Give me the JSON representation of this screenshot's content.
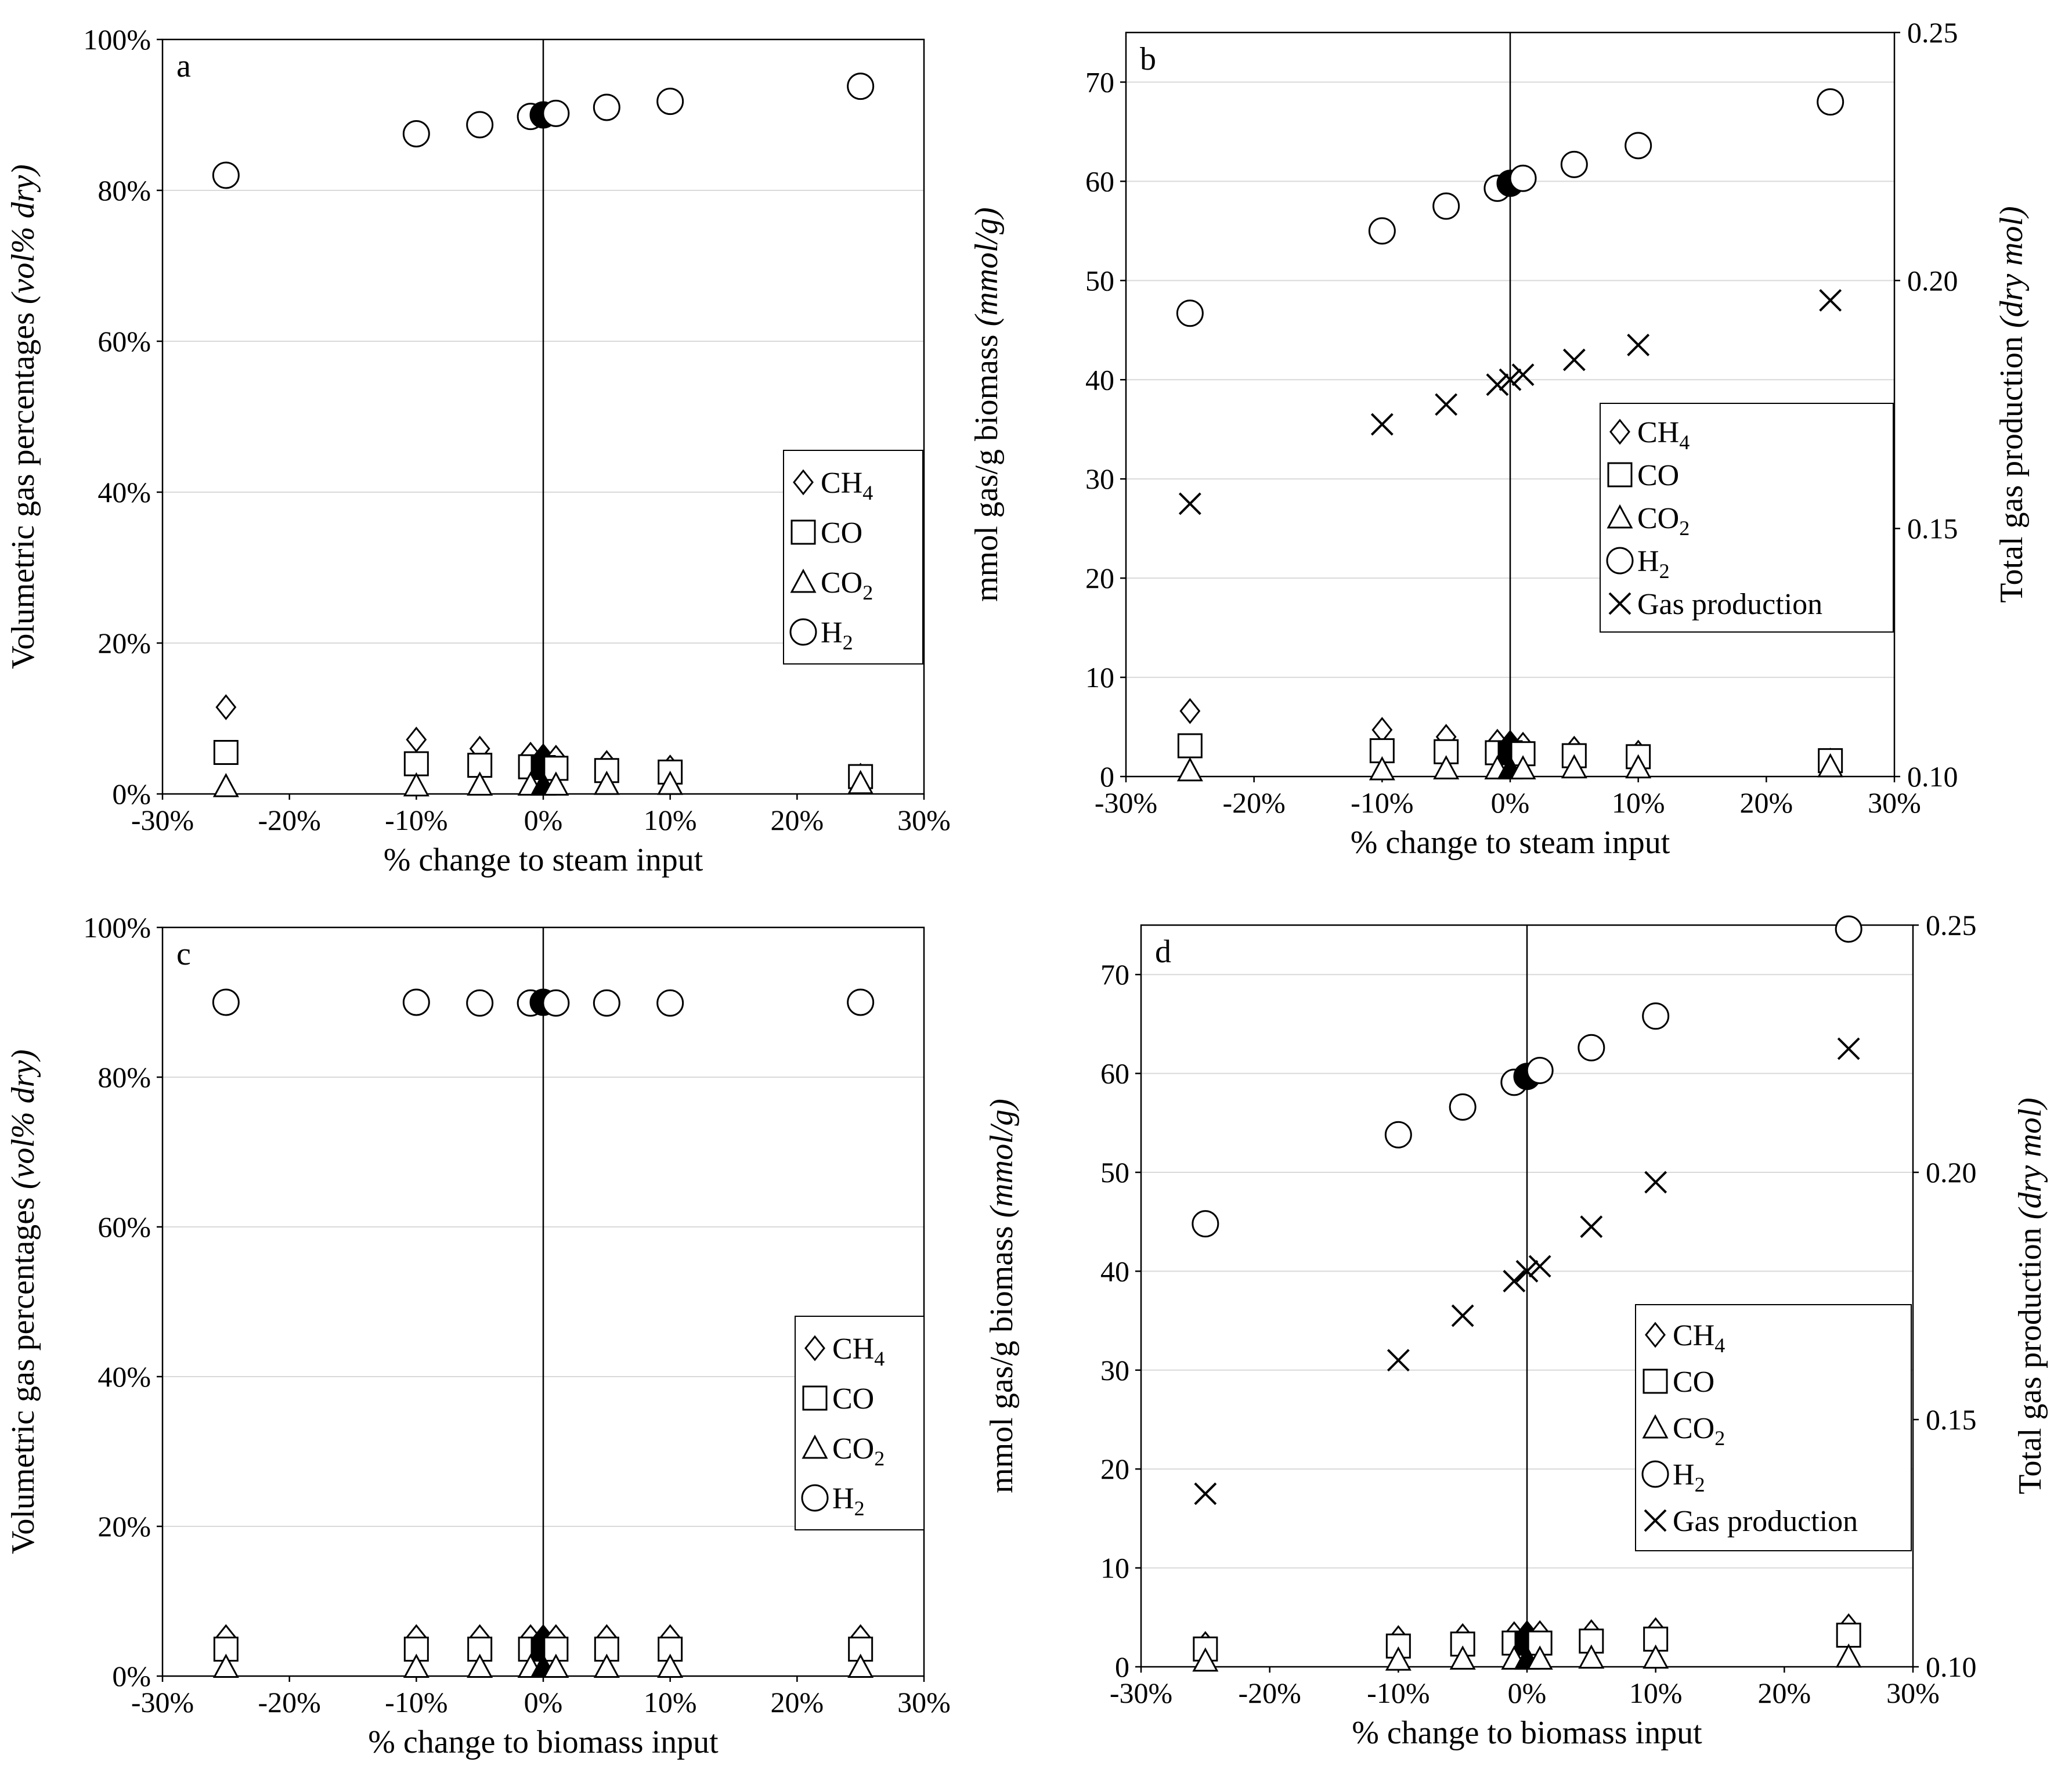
{
  "chart_data": [
    {
      "id": "a",
      "type": "scatter",
      "panel_label": "a",
      "xlabel": "% change to steam input",
      "ylabel": "Volumetric gas percentages (vol% dry)",
      "ylabel_main": "Volumetric gas percentages ",
      "ylabel_italic": "(vol% dry)",
      "xlim": [
        -30,
        30
      ],
      "ylim": [
        0,
        100
      ],
      "x_ticks": [
        -30,
        -20,
        -10,
        0,
        10,
        20,
        30
      ],
      "x_tick_labels": [
        "-30%",
        "-20%",
        "-10%",
        "0%",
        "10%",
        "20%",
        "30%"
      ],
      "y_ticks": [
        0,
        20,
        40,
        60,
        80,
        100
      ],
      "y_tick_labels": [
        "0%",
        "20%",
        "40%",
        "60%",
        "80%",
        "100%"
      ],
      "legend": [
        {
          "marker": "diamond",
          "label": "CH",
          "sub": "4"
        },
        {
          "marker": "square",
          "label": "CO",
          "sub": ""
        },
        {
          "marker": "triangle",
          "label": "CO",
          "sub": "2"
        },
        {
          "marker": "circle",
          "label": "H",
          "sub": "2"
        }
      ],
      "x": [
        -25,
        -10,
        -5,
        -1,
        0,
        1,
        5,
        10,
        25
      ],
      "series": [
        {
          "name": "CH4",
          "marker": "diamond",
          "values": [
            11.5,
            7.2,
            6.0,
            5.2,
            5.0,
            4.8,
            4.1,
            3.5,
            2.4
          ]
        },
        {
          "name": "CO",
          "marker": "square",
          "values": [
            5.5,
            4.0,
            3.8,
            3.6,
            3.5,
            3.4,
            3.1,
            2.9,
            2.3
          ]
        },
        {
          "name": "CO2",
          "marker": "triangle",
          "values": [
            1.0,
            1.1,
            1.2,
            1.2,
            1.2,
            1.2,
            1.3,
            1.3,
            1.4
          ]
        },
        {
          "name": "H2",
          "marker": "circle",
          "values": [
            82.0,
            87.5,
            88.7,
            89.8,
            90.0,
            90.2,
            91.0,
            91.8,
            93.8
          ]
        }
      ],
      "baseline_x": 0
    },
    {
      "id": "b",
      "type": "scatter",
      "panel_label": "b",
      "xlabel": "% change to steam input",
      "ylabel": "mmol gas/g biomass (mmol/g)",
      "ylabel_main": "mmol gas/g biomass ",
      "ylabel_italic": "(mmol/g)",
      "y2label": "Total gas production (dry mol)",
      "y2label_main": "Total gas production ",
      "y2label_italic": "(dry mol)",
      "xlim": [
        -30,
        30
      ],
      "ylim": [
        0,
        75
      ],
      "y2lim": [
        0.1,
        0.25
      ],
      "x_ticks": [
        -30,
        -20,
        -10,
        0,
        10,
        20,
        30
      ],
      "x_tick_labels": [
        "-30%",
        "-20%",
        "-10%",
        "0%",
        "10%",
        "20%",
        "30%"
      ],
      "y_ticks": [
        0,
        10,
        20,
        30,
        40,
        50,
        60,
        70
      ],
      "y_tick_labels": [
        "0",
        "10",
        "20",
        "30",
        "40",
        "50",
        "60",
        "70"
      ],
      "y2_ticks": [
        0.1,
        0.15,
        0.2,
        0.25
      ],
      "y2_tick_labels": [
        "0.10",
        "0.15",
        "0.20",
        "0.25"
      ],
      "legend": [
        {
          "marker": "diamond",
          "label": "CH",
          "sub": "4"
        },
        {
          "marker": "square",
          "label": "CO",
          "sub": ""
        },
        {
          "marker": "triangle",
          "label": "CO",
          "sub": "2"
        },
        {
          "marker": "circle",
          "label": "H",
          "sub": "2"
        },
        {
          "marker": "x",
          "label": "Gas production",
          "sub": ""
        }
      ],
      "x": [
        -25,
        -10,
        -5,
        -1,
        0,
        1,
        5,
        10,
        25
      ],
      "series": [
        {
          "name": "CH4",
          "marker": "diamond",
          "values": [
            6.6,
            4.7,
            4.0,
            3.5,
            3.4,
            3.2,
            2.8,
            2.4,
            1.6
          ]
        },
        {
          "name": "CO",
          "marker": "square",
          "values": [
            3.1,
            2.6,
            2.5,
            2.4,
            2.4,
            2.3,
            2.1,
            2.0,
            1.6
          ]
        },
        {
          "name": "CO2",
          "marker": "triangle",
          "values": [
            0.6,
            0.7,
            0.8,
            0.8,
            0.8,
            0.8,
            0.9,
            0.9,
            1.0
          ]
        },
        {
          "name": "H2",
          "marker": "circle",
          "values": [
            46.7,
            55.0,
            57.5,
            59.3,
            59.8,
            60.3,
            61.7,
            63.6,
            68.0
          ]
        },
        {
          "name": "Gas production",
          "marker": "x",
          "axis": "y2",
          "values": [
            0.155,
            0.171,
            0.175,
            0.179,
            0.18,
            0.181,
            0.184,
            0.187,
            0.196
          ]
        }
      ],
      "baseline_x": 0
    },
    {
      "id": "c",
      "type": "scatter",
      "panel_label": "c",
      "xlabel": "% change to biomass input",
      "ylabel": "Volumetric gas percentages (vol% dry)",
      "ylabel_main": "Volumetric gas percentages ",
      "ylabel_italic": "(vol% dry)",
      "xlim": [
        -30,
        30
      ],
      "ylim": [
        0,
        100
      ],
      "x_ticks": [
        -30,
        -20,
        -10,
        0,
        10,
        20,
        30
      ],
      "x_tick_labels": [
        "-30%",
        "-20%",
        "-10%",
        "0%",
        "10%",
        "20%",
        "30%"
      ],
      "y_ticks": [
        0,
        20,
        40,
        60,
        80,
        100
      ],
      "y_tick_labels": [
        "0%",
        "20%",
        "40%",
        "60%",
        "80%",
        "100%"
      ],
      "legend": [
        {
          "marker": "diamond",
          "label": "CH",
          "sub": "4"
        },
        {
          "marker": "square",
          "label": "CO",
          "sub": ""
        },
        {
          "marker": "triangle",
          "label": "CO",
          "sub": "2"
        },
        {
          "marker": "circle",
          "label": "H",
          "sub": "2"
        }
      ],
      "x": [
        -25,
        -10,
        -5,
        -1,
        0,
        1,
        5,
        10,
        25
      ],
      "series": [
        {
          "name": "CH4",
          "marker": "diamond",
          "values": [
            5.2,
            5.2,
            5.2,
            5.2,
            5.2,
            5.2,
            5.2,
            5.2,
            5.2
          ]
        },
        {
          "name": "CO",
          "marker": "square",
          "values": [
            3.6,
            3.6,
            3.6,
            3.6,
            3.6,
            3.6,
            3.6,
            3.6,
            3.6
          ]
        },
        {
          "name": "CO2",
          "marker": "triangle",
          "values": [
            1.2,
            1.2,
            1.2,
            1.2,
            1.2,
            1.2,
            1.2,
            1.2,
            1.2
          ]
        },
        {
          "name": "H2",
          "marker": "circle",
          "values": [
            90.0,
            90.0,
            89.9,
            89.9,
            90.0,
            89.9,
            89.9,
            89.9,
            90.0
          ]
        }
      ],
      "baseline_x": 0
    },
    {
      "id": "d",
      "type": "scatter",
      "panel_label": "d",
      "xlabel": "% change to biomass input",
      "ylabel": "mmol gas/g biomass (mmol/g)",
      "ylabel_main": "mmol gas/g biomass ",
      "ylabel_italic": "(mmol/g)",
      "y2label": "Total gas production (dry mol)",
      "y2label_main": "Total gas production ",
      "y2label_italic": "(dry mol)",
      "xlim": [
        -30,
        30
      ],
      "ylim": [
        0,
        75
      ],
      "y2lim": [
        0.1,
        0.25
      ],
      "x_ticks": [
        -30,
        -20,
        -10,
        0,
        10,
        20,
        30
      ],
      "x_tick_labels": [
        "-30%",
        "-20%",
        "-10%",
        "0%",
        "10%",
        "20%",
        "30%"
      ],
      "y_ticks": [
        0,
        10,
        20,
        30,
        40,
        50,
        60,
        70
      ],
      "y_tick_labels": [
        "0",
        "10",
        "20",
        "30",
        "40",
        "50",
        "60",
        "70"
      ],
      "y2_ticks": [
        0.1,
        0.15,
        0.2,
        0.25
      ],
      "y2_tick_labels": [
        "0.10",
        "0.15",
        "0.20",
        "0.25"
      ],
      "legend": [
        {
          "marker": "diamond",
          "label": "CH",
          "sub": "4"
        },
        {
          "marker": "square",
          "label": "CO",
          "sub": ""
        },
        {
          "marker": "triangle",
          "label": "CO",
          "sub": "2"
        },
        {
          "marker": "circle",
          "label": "H",
          "sub": "2"
        },
        {
          "marker": "x",
          "label": "Gas production",
          "sub": ""
        }
      ],
      "x": [
        -25,
        -10,
        -5,
        -1,
        0,
        1,
        5,
        10,
        25
      ],
      "series": [
        {
          "name": "CH4",
          "marker": "diamond",
          "values": [
            2.3,
            2.9,
            3.1,
            3.3,
            3.4,
            3.4,
            3.5,
            3.7,
            4.1
          ]
        },
        {
          "name": "CO",
          "marker": "square",
          "values": [
            1.8,
            2.1,
            2.3,
            2.4,
            2.4,
            2.4,
            2.6,
            2.8,
            3.2
          ]
        },
        {
          "name": "CO2",
          "marker": "triangle",
          "values": [
            0.6,
            0.7,
            0.8,
            0.8,
            0.8,
            0.8,
            0.9,
            0.9,
            1.0
          ]
        },
        {
          "name": "H2",
          "marker": "circle",
          "values": [
            44.8,
            53.8,
            56.6,
            59.1,
            59.7,
            60.3,
            62.6,
            65.8,
            74.6
          ]
        },
        {
          "name": "Gas production",
          "marker": "x",
          "axis": "y2",
          "values": [
            0.135,
            0.162,
            0.171,
            0.178,
            0.18,
            0.181,
            0.189,
            0.198,
            0.225
          ]
        }
      ],
      "baseline_x": 0
    }
  ]
}
